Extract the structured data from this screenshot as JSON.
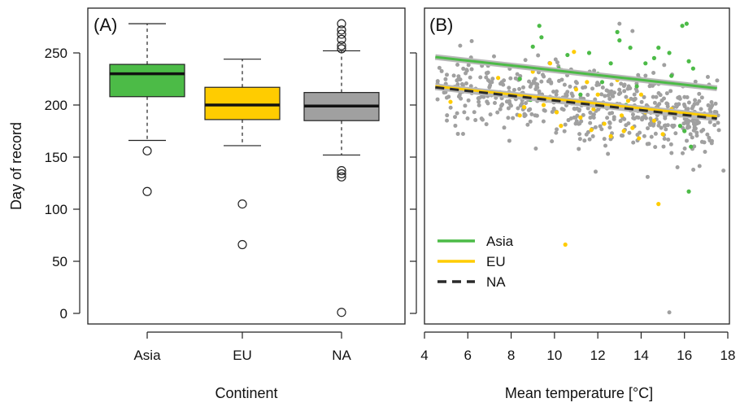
{
  "chart_data": [
    {
      "type": "boxplot",
      "panel_label": "(A)",
      "xlabel": "Continent",
      "ylabel": "Day of record",
      "ylim": [
        0,
        280
      ],
      "y_ticks": [
        0,
        50,
        100,
        150,
        200,
        250
      ],
      "grid": false,
      "categories": [
        "Asia",
        "EU",
        "NA"
      ],
      "boxes": [
        {
          "name": "Asia",
          "color": "#4cbb47",
          "whisker_low": 166,
          "q1": 208,
          "median": 230,
          "q3": 239,
          "whisker_high": 278,
          "outliers": [
            156,
            117
          ]
        },
        {
          "name": "EU",
          "color": "#ffcc00",
          "whisker_low": 161,
          "q1": 186,
          "median": 200,
          "q3": 217,
          "whisker_high": 244,
          "outliers": [
            105,
            66
          ]
        },
        {
          "name": "NA",
          "color": "#a0a0a0",
          "whisker_low": 152,
          "q1": 185,
          "median": 199,
          "q3": 212,
          "whisker_high": 252,
          "outliers": [
            278,
            272,
            268,
            263,
            257,
            254,
            137,
            134,
            131,
            1
          ]
        }
      ]
    },
    {
      "type": "scatter",
      "panel_label": "(B)",
      "xlabel": "Mean temperature [°C]",
      "ylabel": "",
      "xlim": [
        4,
        18
      ],
      "ylim": [
        0,
        280
      ],
      "x_ticks": [
        4,
        6,
        8,
        10,
        12,
        14,
        16,
        18
      ],
      "y_ticks": [
        0,
        50,
        100,
        150,
        200,
        250
      ],
      "grid": false,
      "legend_position": "bottom-left",
      "series": [
        {
          "name": "Asia",
          "color": "#4cbb47",
          "fit": {
            "x": [
              4.5,
              17.5
            ],
            "y": [
              246,
              216
            ]
          }
        },
        {
          "name": "EU",
          "color": "#ffcc00",
          "fit": {
            "x": [
              4.5,
              17.5
            ],
            "y": [
              218,
              189
            ]
          }
        },
        {
          "name": "NA",
          "color": "#a0a0a0",
          "fit": {
            "x": [
              4.5,
              17.5
            ],
            "y": [
              217,
              187
            ]
          }
        }
      ],
      "points": {
        "Asia": [
          [
            9.3,
            276
          ],
          [
            9.4,
            265
          ],
          [
            16.1,
            278
          ],
          [
            15.9,
            276
          ],
          [
            13.5,
            255
          ],
          [
            13.0,
            262
          ],
          [
            12.6,
            240
          ],
          [
            14.2,
            240
          ],
          [
            11.6,
            250
          ],
          [
            12.0,
            230
          ],
          [
            15.3,
            250
          ],
          [
            16.4,
            235
          ],
          [
            16.2,
            242
          ],
          [
            9.0,
            256
          ],
          [
            15.4,
            228
          ],
          [
            10.2,
            235
          ],
          [
            8.4,
            225
          ],
          [
            14.8,
            255
          ],
          [
            12.9,
            270
          ],
          [
            11.2,
            210
          ],
          [
            13.8,
            218
          ],
          [
            16.0,
            175
          ],
          [
            16.3,
            160
          ],
          [
            16.2,
            117
          ],
          [
            14.6,
            245
          ],
          [
            15.8,
            180
          ],
          [
            8.9,
            205
          ],
          [
            12.2,
            222
          ],
          [
            10.6,
            248
          ],
          [
            13.3,
            200
          ]
        ],
        "EU": [
          [
            5.2,
            203
          ],
          [
            7.0,
            212
          ],
          [
            8.0,
            208
          ],
          [
            8.6,
            198
          ],
          [
            9.5,
            200
          ],
          [
            10.1,
            193
          ],
          [
            10.6,
            205
          ],
          [
            11.2,
            188
          ],
          [
            11.8,
            196
          ],
          [
            12.3,
            182
          ],
          [
            12.7,
            200
          ],
          [
            13.1,
            190
          ],
          [
            13.6,
            178
          ],
          [
            14.2,
            193
          ],
          [
            14.6,
            185
          ],
          [
            15.0,
            172
          ],
          [
            15.4,
            196
          ],
          [
            11.5,
            222
          ],
          [
            12.0,
            210
          ],
          [
            9.8,
            240
          ],
          [
            10.9,
            251
          ],
          [
            13.9,
            168
          ],
          [
            14.8,
            105
          ],
          [
            10.5,
            66
          ],
          [
            7.4,
            226
          ],
          [
            12.6,
            170
          ],
          [
            11.0,
            215
          ],
          [
            13.4,
            204
          ],
          [
            8.4,
            190
          ],
          [
            9.0,
            232
          ],
          [
            12.9,
            224
          ],
          [
            10.3,
            180
          ],
          [
            15.8,
            190
          ],
          [
            14.0,
            210
          ],
          [
            11.7,
            176
          ],
          [
            13.2,
            175
          ]
        ]
      }
    }
  ]
}
